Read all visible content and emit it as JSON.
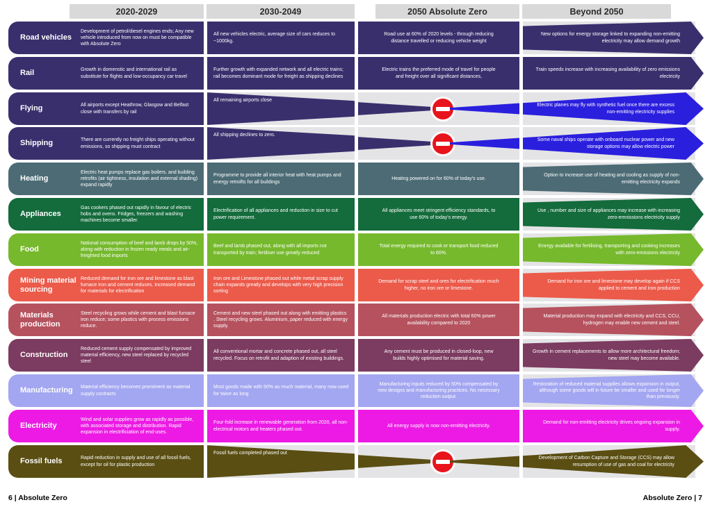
{
  "header": {
    "columns": [
      "2020-2029",
      "2030-2049",
      "2050 Absolute Zero",
      "Beyond 2050"
    ]
  },
  "colors": {
    "header_bg": "#D9D9D9",
    "row_track_gray": "#E4E4E6",
    "no_entry_red": "#E8141C",
    "beyond_blue": "#2B1FDE",
    "footer_blue": "#41609F"
  },
  "rows": [
    {
      "label": "Road vehicles",
      "color": "#3A2F6D",
      "beyond": "expand",
      "banned": false,
      "c1": "Development of petrol/diesel engines ends; Any new vehicle introduced from now on must be compatible with Absolute Zero",
      "c2": "All new vehicles electric, average size of cars reduces to ~1000kg.",
      "c3": "Road use at 60% of 2020 levels - through reducing distance travelled or reducing vehicle weight",
      "c4": "New options for energy storage linked to expanding non-emitting electricity may allow demand growth"
    },
    {
      "label": "Rail",
      "color": "#3A2F6D",
      "beyond": "full",
      "banned": false,
      "c1": "Growth in domenstic and international rail as substitute for flights and low-occupancy car travel",
      "c2": "Further growth with expanded network and all electric trains; rail becomes dominant mode for freight as shipping declines",
      "c3": "Electric trains the preferred mode of travel for people and freight over all significant distances,",
      "c4": "Train speeds increase with increasing availability of zero emissions electricity"
    },
    {
      "label": "Flying",
      "color": "#3A2F6D",
      "beyond": "point",
      "beyond_color": "#2B1FDE",
      "banned": true,
      "c1": "All airports except Heathrow, Glasgow and Belfast close with transfers by rail",
      "c2": "All remaining airports close",
      "c3": "",
      "c4": "Electric planes may fly with synthetic fuel once there are excess non-emitting electricity supplies"
    },
    {
      "label": "Shipping",
      "color": "#3A2F6D",
      "beyond": "point",
      "beyond_color": "#2B1FDE",
      "banned": true,
      "c1": "There are currently no freight ships operating without emissions, so shipping must contract",
      "c2": "All shipping declines to zero.",
      "c3": "",
      "c4": "Some naval ships operate with onboard nuclear power and new storage options may allow electric power"
    },
    {
      "label": "Heating",
      "color": "#4C6B75",
      "beyond": "expand",
      "banned": false,
      "c1": "Electric heat pumps replace gas boilers. and building retrofits (air tightness, insulation and external shading) expand rapidly",
      "c2": "Programme to provide all interior heat with heat pumps and energy retroifts for all buildings",
      "c3": "Heating powered on for 60% of today's use.",
      "c4": "Option to increase use of heating and cooling as supply of non-emitting electricity expands"
    },
    {
      "label": "Appliances",
      "color": "#146B3C",
      "beyond": "expand",
      "banned": false,
      "c1": "Gas cookers phased out rapidly in favour of electric hobs and ovens. Fridges, freezers and washing machines become smaller.",
      "c2": "Electrification of all appliances and reduction in size to cut power requirement.",
      "c3": "All appliances meet stringent efficiency standards, to use 60% of today's energy.",
      "c4": "Use , number and size of appliances may increase with increasing zero-emnissions electricity supply"
    },
    {
      "label": "Food",
      "color": "#76B92D",
      "beyond": "expand",
      "banned": false,
      "c1": "National consumption of beef and lamb drops by 50%, along with reduction in frozen ready meals and air-freighted food imports",
      "c2": "Beef and lamb phased out, along with all imports not transported by train; fertiliser use greatly reduced",
      "c3": "Total energy required to cook or transport food reduced to 60%.",
      "c4": "Energy available for fertilising, transporting and cooking increases with zero-emissions electricity"
    },
    {
      "label": "Mining  material sourcing",
      "color": "#EC5A4A",
      "beyond": "expand",
      "banned": false,
      "c1": "Reduced demand for iron ore and limestone as blast furnace iron and cement reduces. Increased demand for materials for electrification",
      "c2": "Iron ore and Limestone phased out while metal scrap supply chain expands greatly and develops with very high precision sorting",
      "c3": "Demand for scrap steel and ores for electrification much higher, no iron ore or limestone.",
      "c4": "Demand for iron ore and limestone may develop again if CCS applied to cement and iron production"
    },
    {
      "label": "Materials production",
      "color": "#B5525E",
      "beyond": "expand",
      "banned": false,
      "c1": "Steel recycling grows while cement and blast furnace iron reduce; some plastics with process emissions reduce.",
      "c2": "Cement and new steel phased out along with emitting plastics . Steel recycling grows. Aluminium, paper reduced with energy supply.",
      "c3": "All materials production electric with total 60% power availability compared to 2020",
      "c4": "Material production may expand with electricity and CCS, CCU, hydrogen may enable new cement and steel."
    },
    {
      "label": "Construction",
      "color": "#7C3B60",
      "beyond": "expand",
      "banned": false,
      "c1": "Reduced cement supply compensated by improved material efficiency, new steel replaced by recycled steel",
      "c2": "All conventional mortar and concrete phased out, all steel recycled. Focus on retrofit and adaption of existing buildings.",
      "c3": "Any cement must be produced in closed-loop, new builds highly optimised for material saving.",
      "c4": "Growth in cement replacements to allow more architectural freedom; new steel may become available."
    },
    {
      "label": "Manufacturing",
      "color": "#A3A6F0",
      "beyond": "expand",
      "banned": false,
      "c1": "Material efficiency becomes promiment as material supply contracts",
      "c2": "Most goods made with 50% as much material, many now used for twice as long",
      "c3": "Manufacturing inputs reduced by 50% compensated by new designs and manufacturing practices. No necessary reduction output.",
      "c4": "Restoration of reduced material supplies allows expansion in output, although some goods will in future be smaller and used for longer than previously."
    },
    {
      "label": "Electricity",
      "color": "#EC1AE4",
      "beyond": "full",
      "banned": false,
      "c1": "Wind and solar supplies grow as rapidly as possible, with associated storage and distribution. Rapid expansion in electrificiation of end-uses.",
      "c2": "Four-fold increase in renewable generation from 2020, all non-electrical motors and heaters phased out.",
      "c3": "All energy supply is now non-emitting electricity.",
      "c4": "Demand for non-emitting electricity drives ongoing expansion in supply."
    },
    {
      "label": "Fossil fuels",
      "color": "#5A4E13",
      "beyond": "point",
      "banned": true,
      "c1": "Rapid reduction in supply and use of all fossil fuels, except for oil for plastic production",
      "c2": "Fossil fuels completed phased out",
      "c3": "",
      "c4": "Development of Carbon Capture and Storage (CCS) may allow resumption of use of gas and coal for electricity"
    }
  ],
  "footer": {
    "left": "6 | Absolute Zero",
    "right": "Absolute Zero | 7"
  }
}
